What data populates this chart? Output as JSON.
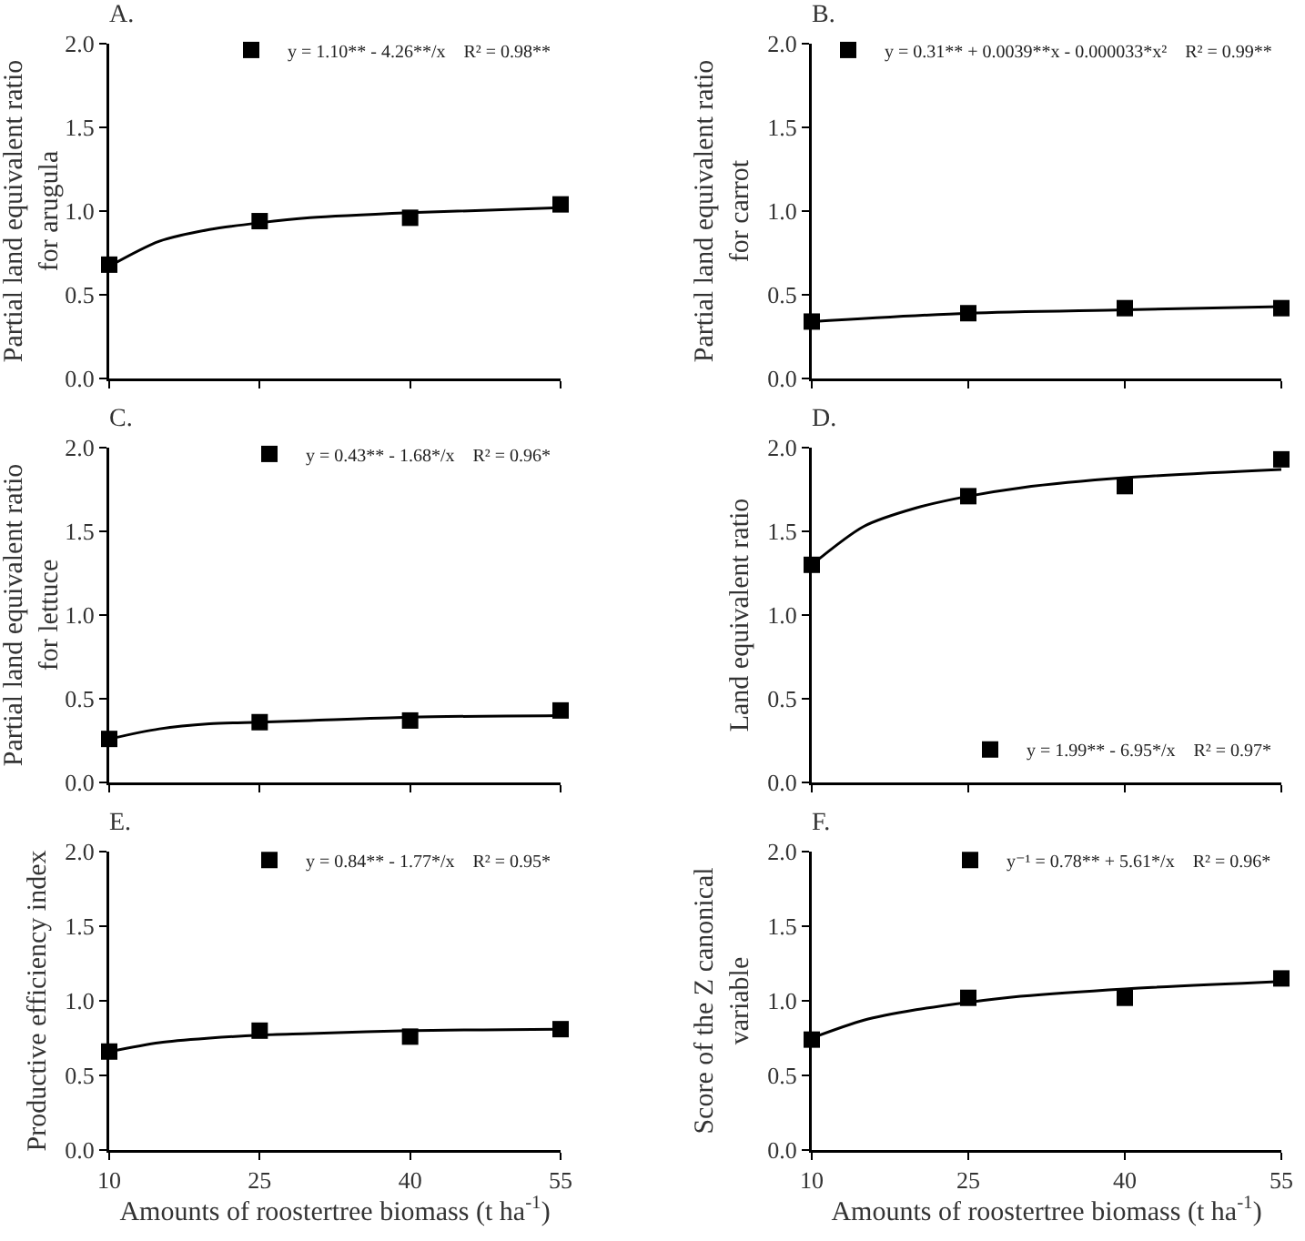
{
  "chart_data": [
    {
      "type": "scatter",
      "title": "A.",
      "ylabel": "Partial land equivalent ratio\nfor arugula",
      "x": [
        10,
        25,
        40,
        55
      ],
      "xlim": [
        10,
        55
      ],
      "xticks": [
        {
          "value": 10,
          "label": null
        },
        {
          "value": 25,
          "label": null
        },
        {
          "value": 40,
          "label": null
        },
        {
          "value": 55,
          "label": null
        }
      ],
      "ylim": [
        0,
        2
      ],
      "yticks": [
        {
          "value": 0,
          "label": "0.0"
        },
        {
          "value": 0.5,
          "label": "0.5"
        },
        {
          "value": 1,
          "label": "1.0"
        },
        {
          "value": 1.5,
          "label": "1.5"
        },
        {
          "value": 2,
          "label": "2.0"
        }
      ],
      "tick_labels": "y",
      "grid": false,
      "legend": "top right",
      "marker": "square",
      "series": [
        {
          "name": "y = 1.10** - 4.26**/x    R² = 0.98**",
          "color": "#000000",
          "values": [
            0.68,
            0.94,
            0.96,
            1.04
          ]
        },
        {
          "type": "line",
          "marker": "none",
          "line_style": "solid",
          "color": "#000000",
          "x": [
            10,
            15,
            20,
            25,
            30,
            40,
            55
          ],
          "values": [
            0.67,
            0.82,
            0.89,
            0.93,
            0.96,
            0.99,
            1.02
          ]
        }
      ]
    },
    {
      "type": "scatter",
      "title": "B.",
      "ylabel": "Partial land equivalent ratio\nfor carrot",
      "x": [
        10,
        25,
        40,
        55
      ],
      "xlim": [
        10,
        55
      ],
      "xticks": [
        {
          "value": 10,
          "label": null
        },
        {
          "value": 25,
          "label": null
        },
        {
          "value": 40,
          "label": null
        },
        {
          "value": 55,
          "label": null
        }
      ],
      "ylim": [
        0,
        2
      ],
      "yticks": [
        {
          "value": 0,
          "label": "0.0"
        },
        {
          "value": 0.5,
          "label": "0.5"
        },
        {
          "value": 1,
          "label": "1.0"
        },
        {
          "value": 1.5,
          "label": "1.5"
        },
        {
          "value": 2,
          "label": "2.0"
        }
      ],
      "tick_labels": "y",
      "grid": false,
      "legend": "top right",
      "marker": "square",
      "series": [
        {
          "name": "y = 0.31** + 0.0039**x - 0.000033*x²    R² = 0.99**",
          "color": "#000000",
          "values": [
            0.34,
            0.39,
            0.42,
            0.42
          ]
        },
        {
          "type": "line",
          "marker": "none",
          "line_style": "solid",
          "color": "#000000",
          "x": [
            10,
            25,
            40,
            55
          ],
          "values": [
            0.34,
            0.39,
            0.41,
            0.43
          ]
        }
      ]
    },
    {
      "type": "scatter",
      "title": "C.",
      "ylabel": "Partial land equivalent ratio\nfor lettuce",
      "x": [
        10,
        25,
        40,
        55
      ],
      "xlim": [
        10,
        55
      ],
      "xticks": [
        {
          "value": 10,
          "label": null
        },
        {
          "value": 25,
          "label": null
        },
        {
          "value": 40,
          "label": null
        },
        {
          "value": 55,
          "label": null
        }
      ],
      "ylim": [
        0,
        2
      ],
      "yticks": [
        {
          "value": 0,
          "label": "0.0"
        },
        {
          "value": 0.5,
          "label": "0.5"
        },
        {
          "value": 1,
          "label": "1.0"
        },
        {
          "value": 1.5,
          "label": "1.5"
        },
        {
          "value": 2,
          "label": "2.0"
        }
      ],
      "tick_labels": "y",
      "grid": false,
      "legend": "top right",
      "marker": "square",
      "series": [
        {
          "name": "y = 0.43** - 1.68*/x    R² = 0.96*",
          "color": "#000000",
          "values": [
            0.26,
            0.36,
            0.37,
            0.43
          ]
        },
        {
          "type": "line",
          "marker": "none",
          "line_style": "solid",
          "color": "#000000",
          "x": [
            10,
            15,
            20,
            25,
            30,
            40,
            55
          ],
          "values": [
            0.26,
            0.32,
            0.35,
            0.36,
            0.37,
            0.39,
            0.4
          ]
        }
      ]
    },
    {
      "type": "scatter",
      "title": "D.",
      "ylabel": "Land equivalent ratio",
      "x": [
        10,
        25,
        40,
        55
      ],
      "xlim": [
        10,
        55
      ],
      "xticks": [
        {
          "value": 10,
          "label": null
        },
        {
          "value": 25,
          "label": null
        },
        {
          "value": 40,
          "label": null
        },
        {
          "value": 55,
          "label": null
        }
      ],
      "ylim": [
        0,
        2
      ],
      "yticks": [
        {
          "value": 0,
          "label": "0.0"
        },
        {
          "value": 0.5,
          "label": "0.5"
        },
        {
          "value": 1,
          "label": "1.0"
        },
        {
          "value": 1.5,
          "label": "1.5"
        },
        {
          "value": 2,
          "label": "2.0"
        }
      ],
      "tick_labels": "y",
      "grid": false,
      "legend": "bottom right",
      "marker": "square",
      "series": [
        {
          "name": "y = 1.99** - 6.95*/x    R² = 0.97*",
          "color": "#000000",
          "values": [
            1.3,
            1.71,
            1.77,
            1.93
          ]
        },
        {
          "type": "line",
          "marker": "none",
          "line_style": "solid",
          "color": "#000000",
          "x": [
            10,
            15,
            20,
            25,
            30,
            40,
            55
          ],
          "values": [
            1.3,
            1.53,
            1.64,
            1.71,
            1.76,
            1.82,
            1.87
          ]
        }
      ]
    },
    {
      "type": "scatter",
      "title": "E.",
      "xlabel": "Amounts of roostertree biomass (t ha$^{-1}$)",
      "ylabel": "Productive efficiency index",
      "x": [
        10,
        25,
        40,
        55
      ],
      "xlim": [
        10,
        55
      ],
      "xticks": [
        10,
        25,
        40,
        55
      ],
      "ylim": [
        0,
        2
      ],
      "yticks": [
        {
          "value": 0,
          "label": "0.0"
        },
        {
          "value": 0.5,
          "label": "0.5"
        },
        {
          "value": 1,
          "label": "1.0"
        },
        {
          "value": 1.5,
          "label": "1.5"
        },
        {
          "value": 2,
          "label": "2.0"
        }
      ],
      "grid": false,
      "legend": "top right",
      "marker": "square",
      "series": [
        {
          "name": "y = 0.84** - 1.77*/x    R² = 0.95*",
          "color": "#000000",
          "values": [
            0.66,
            0.8,
            0.76,
            0.81
          ]
        },
        {
          "type": "line",
          "marker": "none",
          "line_style": "solid",
          "color": "#000000",
          "x": [
            10,
            15,
            20,
            25,
            30,
            40,
            55
          ],
          "values": [
            0.66,
            0.72,
            0.75,
            0.77,
            0.78,
            0.8,
            0.81
          ]
        }
      ]
    },
    {
      "type": "scatter",
      "title": "F.",
      "xlabel": "Amounts of roostertree biomass (t ha$^{-1}$)",
      "ylabel": "Score of the Z canonical\nvariable",
      "x": [
        10,
        25,
        40,
        55
      ],
      "xlim": [
        10,
        55
      ],
      "xticks": [
        10,
        25,
        40,
        55
      ],
      "ylim": [
        0,
        2
      ],
      "yticks": [
        {
          "value": 0,
          "label": "0.0"
        },
        {
          "value": 0.5,
          "label": "0.5"
        },
        {
          "value": 1,
          "label": "1.0"
        },
        {
          "value": 1.5,
          "label": "1.5"
        },
        {
          "value": 2,
          "label": "2.0"
        }
      ],
      "grid": false,
      "legend": "top right",
      "marker": "square",
      "series": [
        {
          "name": "y⁻¹ = 0.78** + 5.61*/x    R² = 0.96*",
          "color": "#000000",
          "values": [
            0.74,
            1.02,
            1.02,
            1.15
          ]
        },
        {
          "type": "line",
          "marker": "none",
          "line_style": "solid",
          "color": "#000000",
          "x": [
            10,
            15,
            20,
            25,
            30,
            40,
            55
          ],
          "values": [
            0.75,
            0.87,
            0.94,
            0.99,
            1.03,
            1.08,
            1.13
          ]
        }
      ]
    }
  ]
}
